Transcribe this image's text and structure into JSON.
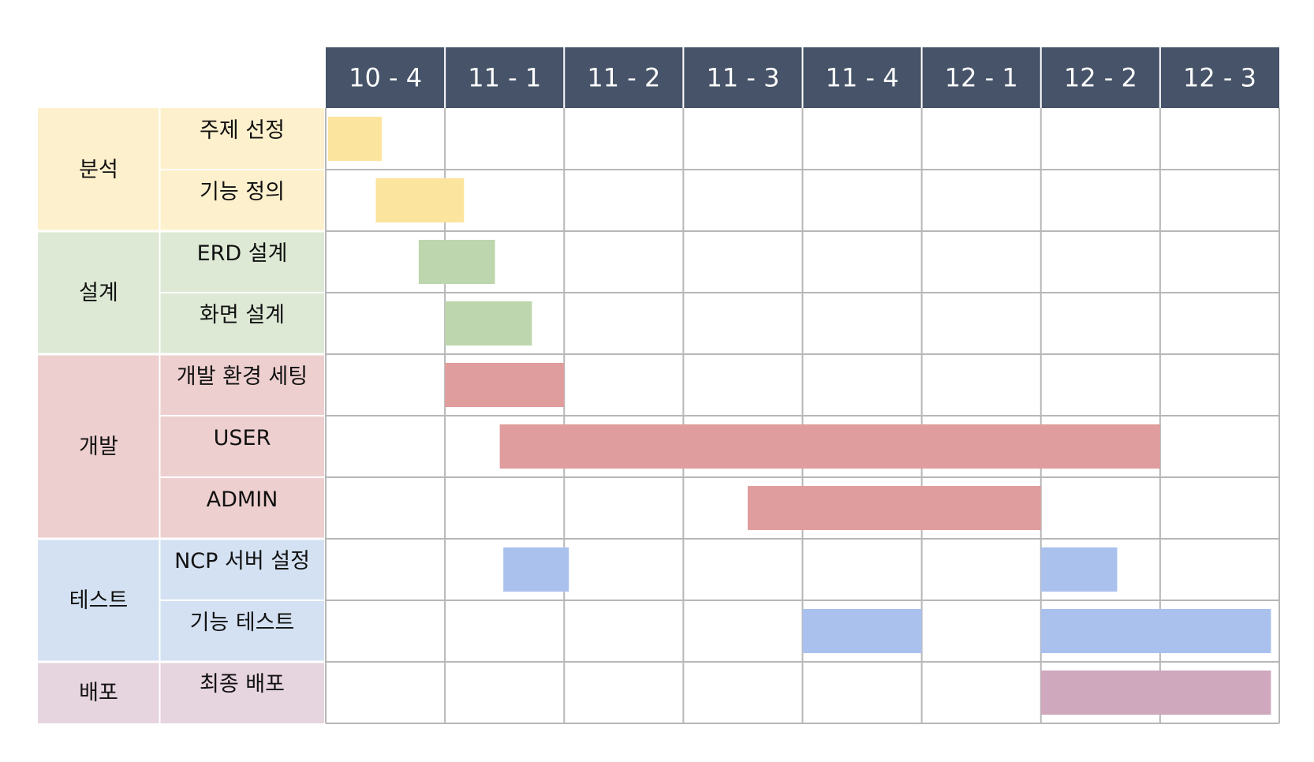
{
  "chart_data": {
    "type": "gantt",
    "periods": [
      "10 - 4",
      "11 - 1",
      "11 - 2",
      "11 - 3",
      "11 - 4",
      "12 - 1",
      "12 - 2",
      "12 - 3"
    ],
    "phases": [
      {
        "name": "분석",
        "color": "#fdf0cc",
        "bar_color": "#fbe49d",
        "tasks": [
          {
            "name": "주제 선정",
            "bars": [
              [
                0.02,
                0.47
              ]
            ]
          },
          {
            "name": "기능 정의",
            "bars": [
              [
                0.42,
                1.16
              ]
            ]
          }
        ]
      },
      {
        "name": "설계",
        "color": "#dde9d5",
        "bar_color": "#bdd6ad",
        "tasks": [
          {
            "name": "ERD 설계",
            "bars": [
              [
                0.78,
                1.42
              ]
            ]
          },
          {
            "name": "화면 설계",
            "bars": [
              [
                1.0,
                1.73
              ]
            ]
          }
        ]
      },
      {
        "name": "개발",
        "color": "#eecfcf",
        "bar_color": "#e09d9d",
        "tasks": [
          {
            "name": "개발 환경 세팅",
            "bars": [
              [
                1.0,
                2.0
              ]
            ]
          },
          {
            "name": "USER",
            "bars": [
              [
                1.46,
                7.0
              ]
            ]
          },
          {
            "name": "ADMIN",
            "bars": [
              [
                3.54,
                6.0
              ]
            ]
          }
        ]
      },
      {
        "name": "테스트",
        "color": "#d3e1f2",
        "bar_color": "#aac1ee",
        "tasks": [
          {
            "name": "NCP 서버 설정",
            "bars": [
              [
                1.49,
                2.04
              ],
              [
                6.0,
                6.64
              ]
            ]
          },
          {
            "name": "기능 테스트",
            "bars": [
              [
                4.0,
                5.0
              ],
              [
                6.0,
                7.93
              ]
            ]
          }
        ]
      },
      {
        "name": "배포",
        "color": "#e6d4de",
        "bar_color": "#cfa8bd",
        "tasks": [
          {
            "name": "최종 배포",
            "bars": [
              [
                6.0,
                7.93
              ]
            ]
          }
        ]
      }
    ],
    "header_color": "#465368",
    "grid_color": "#b7b7b7"
  }
}
